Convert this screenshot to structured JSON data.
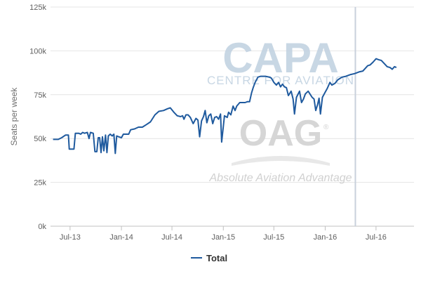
{
  "chart_data": {
    "type": "line",
    "title": "",
    "xlabel": "",
    "ylabel": "Seats per week",
    "ylim": [
      0,
      125000
    ],
    "y_ticks": [
      0,
      25000,
      50000,
      75000,
      100000,
      125000
    ],
    "y_tick_labels": [
      "0k",
      "25k",
      "50k",
      "75k",
      "100k",
      "125k"
    ],
    "x_range": [
      "2013-04-22",
      "2016-11-14"
    ],
    "x_ticks": [
      "2013-07-01",
      "2014-01-01",
      "2014-07-01",
      "2015-01-01",
      "2015-07-01",
      "2016-01-01",
      "2016-07-01"
    ],
    "x_tick_labels": [
      "Jul-13",
      "Jan-14",
      "Jul-14",
      "Jan-15",
      "Jul-15",
      "Jan-16",
      "Jul-16"
    ],
    "grid": "horizontal",
    "legend": {
      "position": "bottom-center",
      "entries": [
        "Total"
      ]
    },
    "vertical_marker": {
      "x": "2016-04-18",
      "color": "#c8d0dc"
    },
    "series": [
      {
        "name": "Total",
        "color": "#1f5a9e",
        "points": [
          [
            "2013-05-01",
            49500
          ],
          [
            "2013-05-20",
            49500
          ],
          [
            "2013-06-01",
            50500
          ],
          [
            "2013-06-15",
            52000
          ],
          [
            "2013-06-25",
            52000
          ],
          [
            "2013-06-28",
            44000
          ],
          [
            "2013-07-15",
            44000
          ],
          [
            "2013-07-20",
            53000
          ],
          [
            "2013-08-01",
            53000
          ],
          [
            "2013-08-08",
            52500
          ],
          [
            "2013-08-15",
            53500
          ],
          [
            "2013-08-22",
            53000
          ],
          [
            "2013-09-01",
            53500
          ],
          [
            "2013-09-07",
            50000
          ],
          [
            "2013-09-12",
            53500
          ],
          [
            "2013-09-22",
            53000
          ],
          [
            "2013-09-28",
            42500
          ],
          [
            "2013-10-05",
            42500
          ],
          [
            "2013-10-10",
            50500
          ],
          [
            "2013-10-15",
            50500
          ],
          [
            "2013-10-20",
            42000
          ],
          [
            "2013-10-25",
            51000
          ],
          [
            "2013-10-30",
            43000
          ],
          [
            "2013-11-05",
            52000
          ],
          [
            "2013-11-10",
            42000
          ],
          [
            "2013-11-15",
            51500
          ],
          [
            "2013-11-22",
            52500
          ],
          [
            "2013-11-29",
            51500
          ],
          [
            "2013-12-05",
            52500
          ],
          [
            "2013-12-10",
            41500
          ],
          [
            "2013-12-15",
            51500
          ],
          [
            "2013-12-22",
            51000
          ],
          [
            "2014-01-01",
            50500
          ],
          [
            "2014-01-08",
            52500
          ],
          [
            "2014-01-20",
            52500
          ],
          [
            "2014-01-27",
            52500
          ],
          [
            "2014-02-03",
            55000
          ],
          [
            "2014-02-17",
            55500
          ],
          [
            "2014-03-03",
            56500
          ],
          [
            "2014-03-17",
            56500
          ],
          [
            "2014-04-01",
            58000
          ],
          [
            "2014-04-15",
            59500
          ],
          [
            "2014-05-01",
            63500
          ],
          [
            "2014-05-15",
            65500
          ],
          [
            "2014-06-01",
            66000
          ],
          [
            "2014-06-15",
            67000
          ],
          [
            "2014-06-25",
            67500
          ],
          [
            "2014-07-08",
            65000
          ],
          [
            "2014-07-20",
            63000
          ],
          [
            "2014-08-01",
            62500
          ],
          [
            "2014-08-08",
            63000
          ],
          [
            "2014-08-13",
            61000
          ],
          [
            "2014-08-20",
            63500
          ],
          [
            "2014-08-28",
            63500
          ],
          [
            "2014-09-05",
            62000
          ],
          [
            "2014-09-15",
            58500
          ],
          [
            "2014-09-25",
            61500
          ],
          [
            "2014-10-02",
            60500
          ],
          [
            "2014-10-08",
            51000
          ],
          [
            "2014-10-15",
            60000
          ],
          [
            "2014-10-22",
            62500
          ],
          [
            "2014-10-28",
            66000
          ],
          [
            "2014-11-03",
            59000
          ],
          [
            "2014-11-10",
            63000
          ],
          [
            "2014-11-17",
            64000
          ],
          [
            "2014-11-24",
            58500
          ],
          [
            "2014-12-01",
            62000
          ],
          [
            "2014-12-08",
            62500
          ],
          [
            "2014-12-15",
            61000
          ],
          [
            "2014-12-22",
            64000
          ],
          [
            "2014-12-26",
            48000
          ],
          [
            "2015-01-05",
            63000
          ],
          [
            "2015-01-15",
            62000
          ],
          [
            "2015-01-20",
            65000
          ],
          [
            "2015-01-28",
            63500
          ],
          [
            "2015-02-05",
            68500
          ],
          [
            "2015-02-12",
            66000
          ],
          [
            "2015-02-18",
            68500
          ],
          [
            "2015-03-01",
            70500
          ],
          [
            "2015-03-10",
            70500
          ],
          [
            "2015-03-20",
            70500
          ],
          [
            "2015-03-28",
            71000
          ],
          [
            "2015-04-05",
            71000
          ],
          [
            "2015-04-12",
            76000
          ],
          [
            "2015-04-18",
            79000
          ],
          [
            "2015-04-25",
            82000
          ],
          [
            "2015-05-05",
            85000
          ],
          [
            "2015-05-15",
            85500
          ],
          [
            "2015-06-01",
            85500
          ],
          [
            "2015-06-15",
            85000
          ],
          [
            "2015-06-22",
            84500
          ],
          [
            "2015-07-01",
            82000
          ],
          [
            "2015-07-10",
            80500
          ],
          [
            "2015-07-18",
            82000
          ],
          [
            "2015-07-25",
            79500
          ],
          [
            "2015-08-01",
            81000
          ],
          [
            "2015-08-08",
            79500
          ],
          [
            "2015-08-15",
            79000
          ],
          [
            "2015-08-22",
            74500
          ],
          [
            "2015-09-01",
            77000
          ],
          [
            "2015-09-08",
            72500
          ],
          [
            "2015-09-13",
            64000
          ],
          [
            "2015-09-20",
            73500
          ],
          [
            "2015-10-01",
            77000
          ],
          [
            "2015-10-08",
            70500
          ],
          [
            "2015-10-15",
            72500
          ],
          [
            "2015-10-22",
            75500
          ],
          [
            "2015-11-01",
            77000
          ],
          [
            "2015-11-15",
            73500
          ],
          [
            "2015-11-22",
            72500
          ],
          [
            "2015-11-28",
            66000
          ],
          [
            "2015-12-05",
            69500
          ],
          [
            "2015-12-10",
            73000
          ],
          [
            "2015-12-15",
            64000
          ],
          [
            "2015-12-22",
            73500
          ],
          [
            "2016-01-01",
            76500
          ],
          [
            "2016-01-08",
            78500
          ],
          [
            "2016-01-18",
            82000
          ],
          [
            "2016-01-25",
            80500
          ],
          [
            "2016-02-05",
            81500
          ],
          [
            "2016-02-15",
            83500
          ],
          [
            "2016-03-01",
            85000
          ],
          [
            "2016-03-15",
            85500
          ],
          [
            "2016-04-01",
            86500
          ],
          [
            "2016-04-15",
            87000
          ],
          [
            "2016-05-01",
            88000
          ],
          [
            "2016-05-15",
            88500
          ],
          [
            "2016-06-01",
            91500
          ],
          [
            "2016-06-10",
            92000
          ],
          [
            "2016-06-20",
            93500
          ],
          [
            "2016-07-01",
            95500
          ],
          [
            "2016-07-10",
            95000
          ],
          [
            "2016-07-20",
            94500
          ],
          [
            "2016-08-01",
            92500
          ],
          [
            "2016-08-10",
            91000
          ],
          [
            "2016-08-20",
            90500
          ],
          [
            "2016-08-28",
            89500
          ],
          [
            "2016-09-05",
            91000
          ],
          [
            "2016-09-12",
            90500
          ]
        ]
      }
    ]
  },
  "watermark": {
    "capa": "CAPA",
    "capa_sub": "CENTRE FOR AVIATION",
    "oag": "OAG",
    "oag_reg": "®",
    "oag_tagline": "Absolute Aviation Advantage"
  }
}
